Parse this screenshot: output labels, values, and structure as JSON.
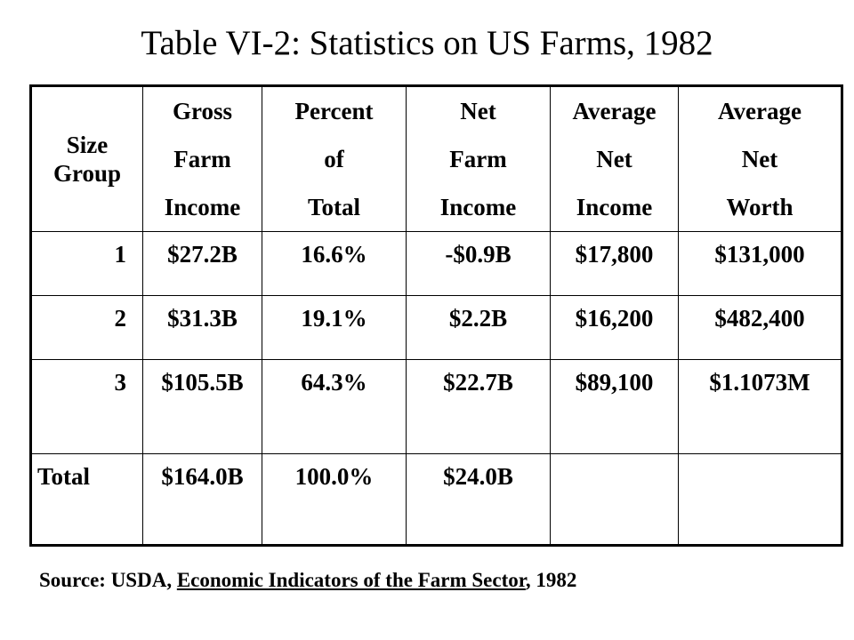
{
  "title": "Table VI-2: Statistics on US Farms, 1982",
  "table": {
    "headers": [
      [
        "Size",
        "Group"
      ],
      [
        "Gross",
        "Farm",
        "Income"
      ],
      [
        "Percent",
        "of",
        "Total"
      ],
      [
        "Net",
        "Farm",
        "Income"
      ],
      [
        "Average",
        "Net",
        "Income"
      ],
      [
        "Average",
        "Net",
        "Worth"
      ]
    ],
    "rows": [
      [
        "1",
        "$27.2B",
        "16.6%",
        "-$0.9B",
        "$17,800",
        "$131,000"
      ],
      [
        "2",
        "$31.3B",
        "19.1%",
        "$2.2B",
        "$16,200",
        "$482,400"
      ],
      [
        "3",
        "$105.5B",
        "64.3%",
        "$22.7B",
        "$89,100",
        "$1.1073M"
      ],
      [
        "Total",
        "$164.0B",
        "100.0%",
        "$24.0B",
        "",
        ""
      ]
    ]
  },
  "source": {
    "prefix": "Source: USDA, ",
    "publication": "Economic Indicators of the Farm Sector",
    "suffix": ", 1982"
  }
}
